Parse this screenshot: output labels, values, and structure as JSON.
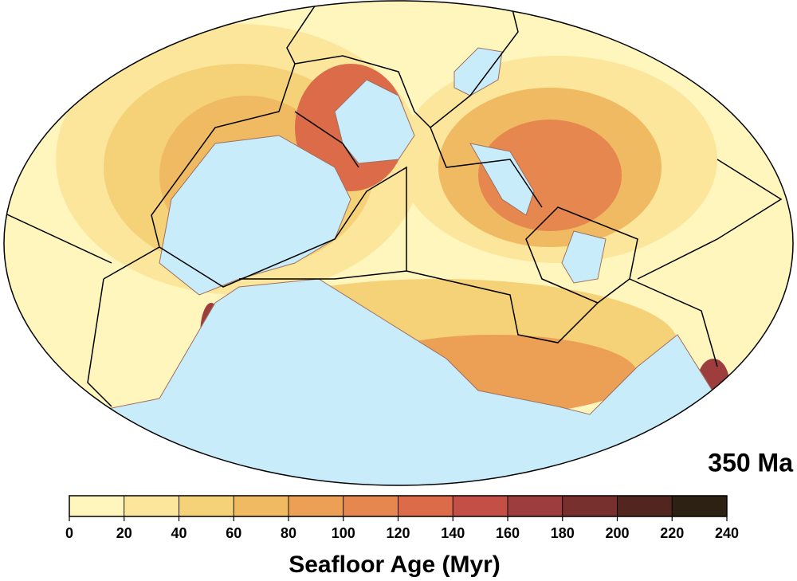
{
  "map": {
    "age_label": "350 Ma"
  },
  "colorbar": {
    "label": "Seafloor Age (Myr)",
    "ticks": [
      0,
      20,
      40,
      60,
      80,
      100,
      120,
      140,
      160,
      180,
      200,
      220,
      240
    ],
    "colors": [
      "#fff6bd",
      "#fbe69b",
      "#f5d178",
      "#f0ba62",
      "#eba056",
      "#e5874e",
      "#db6b49",
      "#c34f47",
      "#9e3d3d",
      "#77302e",
      "#52261e",
      "#2c2113"
    ]
  }
}
